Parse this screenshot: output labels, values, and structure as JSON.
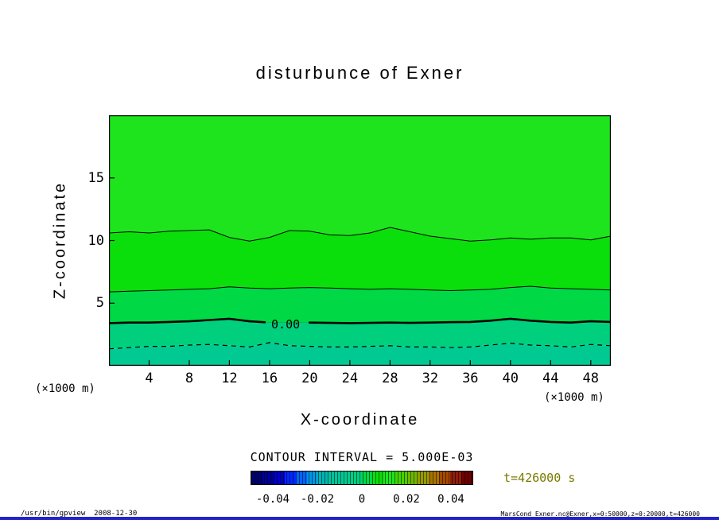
{
  "title": "disturbunce of Exner",
  "axes": {
    "x_label": "X-coordinate",
    "y_label": "Z-coordinate",
    "x_unit": "(×1000 m)",
    "y_unit": "(×1000 m)"
  },
  "legend": {
    "contour_interval_text": "CONTOUR INTERVAL = 5.000E-03"
  },
  "time_label": "t=426000 s",
  "footer": {
    "left": "/usr/bin/gpview  2008-12-30",
    "right": "MarsCond_Exner.nc@Exner,x=0:50000,z=0:20000,t=426000"
  },
  "colors": {
    "time_label": "#7a7a00",
    "bottom_bar": "#2323cc",
    "background": "#ffffff"
  },
  "chart_data": {
    "type": "heatmap",
    "subtype": "filled-contour",
    "title": "disturbunce of Exner",
    "xlabel": "X-coordinate (×1000 m)",
    "ylabel": "Z-coordinate (×1000 m)",
    "x_range": [
      0,
      50
    ],
    "z_range": [
      0,
      20
    ],
    "x_ticks": [
      4,
      8,
      12,
      16,
      20,
      24,
      28,
      32,
      36,
      40,
      44,
      48
    ],
    "z_ticks": [
      5,
      10,
      15
    ],
    "contour_interval": 0.005,
    "zero_label": "0.00",
    "bands": [
      {
        "range": [
          0.01,
          0.015
        ],
        "color": "#1ee41e"
      },
      {
        "range": [
          0.005,
          0.01
        ],
        "color": "#0bdf0b"
      },
      {
        "range": [
          0.0,
          0.005
        ],
        "color": "#00d846"
      },
      {
        "range": [
          -0.005,
          0.0
        ],
        "color": "#00d07e"
      },
      {
        "range": [
          -0.01,
          -0.005
        ],
        "color": "#00ca92"
      }
    ],
    "contours": [
      {
        "level": 0.01,
        "style": "thin",
        "x_start": 0,
        "x_step": 2,
        "z": [
          10.6,
          10.7,
          10.6,
          10.75,
          10.8,
          10.85,
          10.25,
          9.95,
          10.25,
          10.8,
          10.75,
          10.45,
          10.4,
          10.6,
          11.05,
          10.7,
          10.35,
          10.15,
          9.95,
          10.05,
          10.2,
          10.1,
          10.2,
          10.2,
          10.05,
          10.35
        ]
      },
      {
        "level": 0.005,
        "style": "thin",
        "x_start": 0,
        "x_step": 2,
        "z": [
          5.9,
          5.95,
          6.0,
          6.05,
          6.1,
          6.15,
          6.3,
          6.2,
          6.15,
          6.2,
          6.25,
          6.2,
          6.15,
          6.1,
          6.15,
          6.1,
          6.05,
          6.0,
          6.05,
          6.1,
          6.25,
          6.35,
          6.2,
          6.15,
          6.1,
          6.05
        ]
      },
      {
        "level": 0.0,
        "style": "thick",
        "x_start": 0,
        "x_step": 2,
        "label": "0.00",
        "label_x": 17.6,
        "label_z": 3.3,
        "label_line_z": 3.45,
        "label_gap_x": [
          15.6,
          19.9
        ],
        "z": [
          3.4,
          3.45,
          3.45,
          3.5,
          3.55,
          3.65,
          3.75,
          3.55,
          3.45,
          3.42,
          3.45,
          3.42,
          3.4,
          3.42,
          3.45,
          3.42,
          3.45,
          3.48,
          3.5,
          3.6,
          3.75,
          3.6,
          3.5,
          3.45,
          3.55,
          3.5
        ]
      },
      {
        "level": -0.005,
        "style": "dashed",
        "x_start": 0,
        "x_step": 2,
        "z": [
          1.35,
          1.45,
          1.55,
          1.55,
          1.65,
          1.7,
          1.6,
          1.5,
          1.85,
          1.6,
          1.55,
          1.5,
          1.5,
          1.55,
          1.6,
          1.5,
          1.5,
          1.45,
          1.5,
          1.65,
          1.8,
          1.65,
          1.6,
          1.5,
          1.7,
          1.6
        ]
      }
    ],
    "colorbar": {
      "range": [
        -0.05,
        0.05
      ],
      "segment_step": 0.005,
      "segment_colors": [
        "#000070",
        "#000096",
        "#0000c8",
        "#0028ff",
        "#0064ff",
        "#0096e6",
        "#00b4b4",
        "#00c49b",
        "#00ca92",
        "#00d07e",
        "#00d846",
        "#0bdf0b",
        "#1ee41e",
        "#46d200",
        "#6eb900",
        "#969b00",
        "#a87300",
        "#a54a00",
        "#8f1e0a",
        "#6e0000"
      ],
      "tick_values": [
        -0.04,
        -0.02,
        0,
        0.02,
        0.04
      ],
      "tick_labels": [
        "-0.04",
        "-0.02",
        "0",
        "0.02",
        "0.04"
      ]
    }
  }
}
